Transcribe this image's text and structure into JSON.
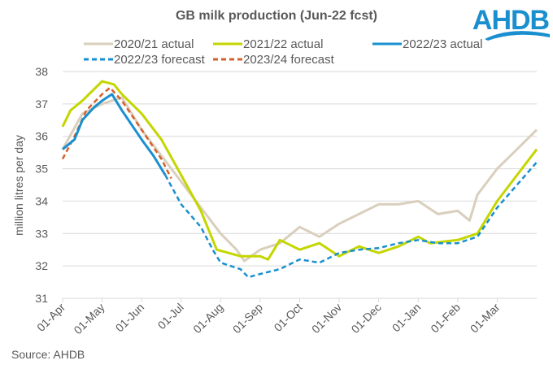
{
  "logo_text": "AHDB",
  "source": "Source: AHDB",
  "chart_data": {
    "type": "line",
    "title": "GB milk production (Jun-22 fcst)",
    "xlabel": "",
    "ylabel": "million litres per day",
    "ylim": [
      31,
      38
    ],
    "yticks": [
      31,
      32,
      33,
      34,
      35,
      36,
      37,
      38
    ],
    "xticks": [
      "01-Apr",
      "01-May",
      "01-Jun",
      "01-Jul",
      "01-Aug",
      "01-Sep",
      "01-Oct",
      "01-Nov",
      "01-Dec",
      "01-Jan",
      "01-Feb",
      "01-Mar"
    ],
    "x_unit": "months since 01-Apr",
    "xlim": [
      0,
      12
    ],
    "grid": "horizontal",
    "legend": "top",
    "series": [
      {
        "name": "2020/21 actual",
        "color": "#d9cfbd",
        "dash": false,
        "x": [
          0,
          0.5,
          1,
          1.5,
          2,
          2.5,
          3,
          3.5,
          4,
          4.4,
          4.6,
          5,
          5.5,
          6,
          6.5,
          7,
          7.5,
          8,
          8.5,
          9,
          9.5,
          10,
          10.3,
          10.5,
          11,
          11.5,
          12
        ],
        "y": [
          35.6,
          36.7,
          37.0,
          37.2,
          36.2,
          35.4,
          34.6,
          33.8,
          33.0,
          32.5,
          32.15,
          32.5,
          32.7,
          33.2,
          32.9,
          33.3,
          33.6,
          33.9,
          33.9,
          34.0,
          33.6,
          33.7,
          33.4,
          34.2,
          35.0,
          35.6,
          36.2
        ]
      },
      {
        "name": "2021/22 actual",
        "color": "#c4d600",
        "dash": false,
        "x": [
          0,
          0.2,
          0.5,
          1,
          1.3,
          1.5,
          2,
          2.5,
          3,
          3.5,
          3.9,
          4.5,
          5,
          5.2,
          5.5,
          6,
          6.5,
          7,
          7.5,
          8,
          8.5,
          9,
          9.3,
          10,
          10.5,
          11,
          11.5,
          12
        ],
        "y": [
          36.3,
          36.8,
          37.1,
          37.7,
          37.6,
          37.3,
          36.7,
          35.9,
          34.8,
          33.7,
          32.5,
          32.3,
          32.3,
          32.2,
          32.8,
          32.5,
          32.7,
          32.3,
          32.6,
          32.4,
          32.6,
          32.9,
          32.7,
          32.8,
          33.0,
          34.0,
          34.8,
          35.6
        ]
      },
      {
        "name": "2022/23 actual",
        "color": "#1a8fcf",
        "dash": false,
        "x": [
          0,
          0.3,
          0.5,
          0.8,
          1,
          1.25,
          1.5,
          2,
          2.3,
          2.6
        ],
        "y": [
          35.6,
          35.9,
          36.5,
          36.9,
          37.1,
          37.3,
          36.8,
          35.9,
          35.4,
          34.8
        ]
      },
      {
        "name": "2022/23 forecast",
        "color": "#1a8fcf",
        "dash": true,
        "x": [
          2.6,
          3,
          3.5,
          3.8,
          4,
          4.5,
          4.7,
          5,
          5.5,
          6,
          6.5,
          7,
          7.5,
          8,
          8.5,
          9,
          9.5,
          10,
          10.5,
          11,
          11.5,
          12
        ],
        "y": [
          34.8,
          33.9,
          33.2,
          32.5,
          32.1,
          31.9,
          31.65,
          31.75,
          31.9,
          32.2,
          32.1,
          32.4,
          32.5,
          32.55,
          32.7,
          32.8,
          32.7,
          32.7,
          32.9,
          33.8,
          34.5,
          35.2
        ]
      },
      {
        "name": "2023/24 forecast",
        "color": "#d4602a",
        "dash": true,
        "x": [
          0,
          0.3,
          0.6,
          1,
          1.2,
          1.5,
          2,
          2.5,
          2.75
        ],
        "y": [
          35.3,
          36.0,
          36.8,
          37.3,
          37.5,
          37.1,
          36.2,
          35.3,
          34.7
        ]
      }
    ]
  }
}
